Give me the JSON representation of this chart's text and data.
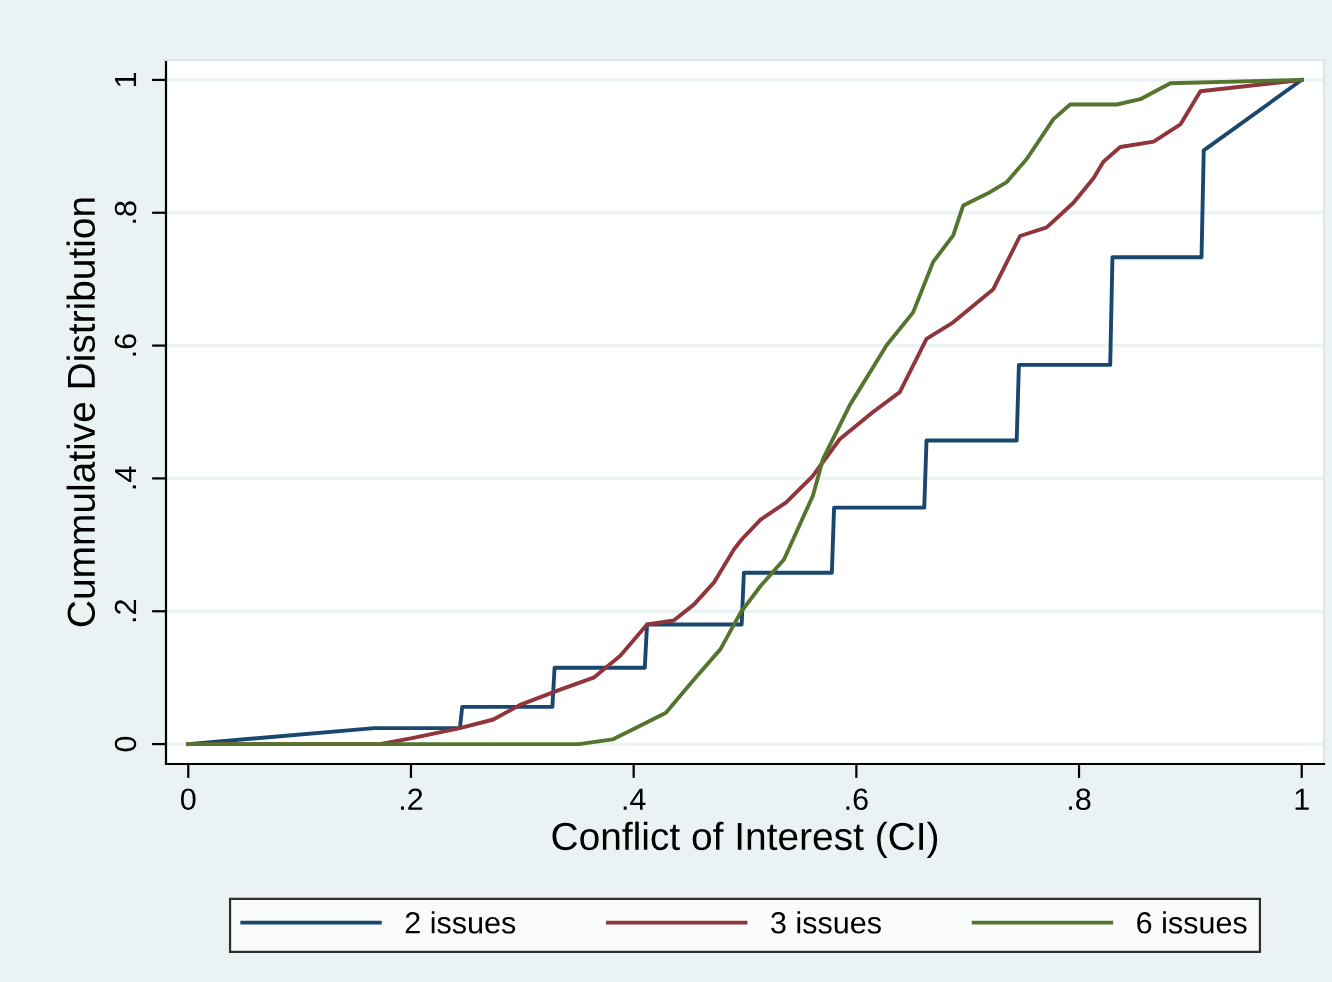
{
  "chart_data": {
    "type": "line",
    "xlabel": "Conflict of Interest (CI)",
    "ylabel": "Cummulative Distribution",
    "xlim": [
      -0.02,
      1.02
    ],
    "ylim": [
      -0.03,
      1.03
    ],
    "xticks": [
      0,
      {
        "value": 0.2,
        "label": ".2"
      },
      {
        "value": 0.4,
        "label": ".4"
      },
      {
        "value": 0.6,
        "label": ".6"
      },
      {
        "value": 0.8,
        "label": ".8"
      },
      1
    ],
    "yticks": [
      0,
      {
        "value": 0.2,
        "label": ".2"
      },
      {
        "value": 0.4,
        "label": ".4"
      },
      {
        "value": 0.6,
        "label": ".6"
      },
      {
        "value": 0.8,
        "label": ".8"
      },
      1
    ],
    "grid": "y",
    "legend": "bottom",
    "line_style": "solid",
    "marker": "none",
    "series": [
      {
        "name": "2 issues",
        "color": "#1a476f",
        "x": [
          0,
          0.167,
          0.244,
          0.246,
          0.327,
          0.329,
          0.41,
          0.412,
          0.497,
          0.499,
          0.578,
          0.58,
          0.661,
          0.663,
          0.744,
          0.746,
          0.828,
          0.83,
          0.91,
          0.912,
          1.0
        ],
        "values": [
          0,
          0.024,
          0.024,
          0.056,
          0.056,
          0.115,
          0.115,
          0.18,
          0.18,
          0.258,
          0.258,
          0.356,
          0.356,
          0.457,
          0.457,
          0.571,
          0.571,
          0.733,
          0.733,
          0.894,
          1.0
        ]
      },
      {
        "name": "3 issues",
        "color": "#90353b",
        "x": [
          0,
          0.172,
          0.201,
          0.244,
          0.274,
          0.298,
          0.334,
          0.364,
          0.388,
          0.412,
          0.436,
          0.454,
          0.472,
          0.49,
          0.497,
          0.514,
          0.537,
          0.561,
          0.585,
          0.615,
          0.639,
          0.663,
          0.687,
          0.723,
          0.747,
          0.771,
          0.795,
          0.813,
          0.822,
          0.837,
          0.867,
          0.891,
          0.909,
          1.0
        ],
        "values": [
          0,
          0,
          0.009,
          0.024,
          0.037,
          0.059,
          0.082,
          0.1,
          0.133,
          0.18,
          0.186,
          0.21,
          0.243,
          0.293,
          0.308,
          0.338,
          0.364,
          0.404,
          0.459,
          0.5,
          0.53,
          0.61,
          0.635,
          0.685,
          0.765,
          0.778,
          0.815,
          0.852,
          0.877,
          0.899,
          0.907,
          0.933,
          0.983,
          1.0
        ]
      },
      {
        "name": "6 issues",
        "color": "#55752f",
        "x": [
          0,
          0.351,
          0.381,
          0.405,
          0.429,
          0.454,
          0.478,
          0.496,
          0.514,
          0.535,
          0.561,
          0.57,
          0.594,
          0.627,
          0.651,
          0.669,
          0.687,
          0.696,
          0.72,
          0.735,
          0.753,
          0.777,
          0.792,
          0.834,
          0.855,
          0.882,
          1.0
        ],
        "values": [
          0,
          0,
          0.007,
          0.027,
          0.047,
          0.097,
          0.143,
          0.198,
          0.238,
          0.278,
          0.374,
          0.429,
          0.51,
          0.6,
          0.65,
          0.726,
          0.766,
          0.811,
          0.831,
          0.846,
          0.881,
          0.941,
          0.963,
          0.963,
          0.971,
          0.995,
          1.0
        ]
      }
    ]
  }
}
